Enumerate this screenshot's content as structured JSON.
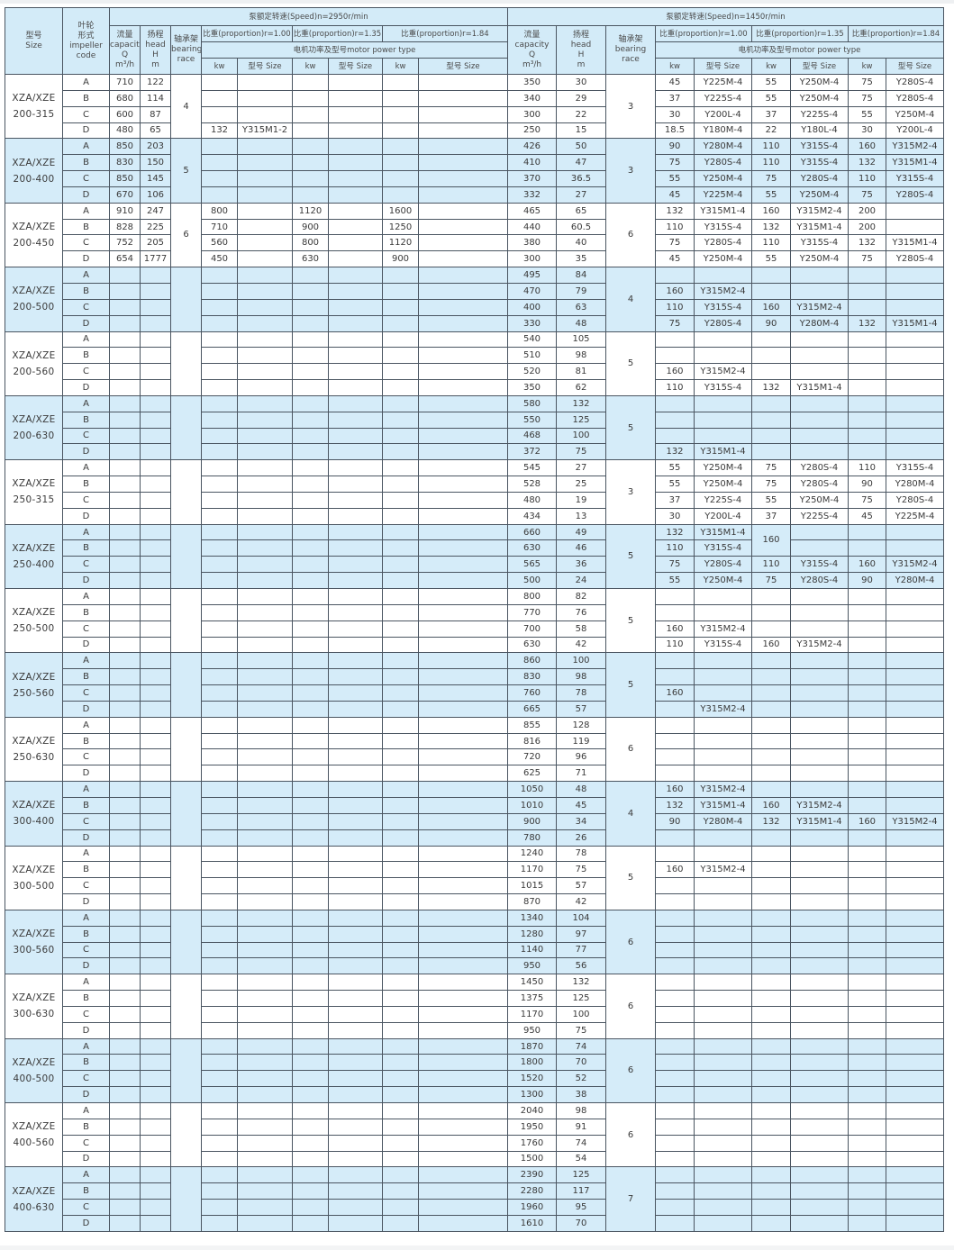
{
  "header": {
    "size": [
      "型号",
      "Size"
    ],
    "impeller": [
      "叶轮",
      "形式",
      "impeller",
      "code"
    ],
    "speed_2950": "泵额定转速(Speed)n=2950r/min",
    "speed_1450": "泵额定转速(Speed)n=1450r/min",
    "capacity": [
      "流量",
      "capacity",
      "Q",
      "m³/h"
    ],
    "head": [
      "扬程",
      "head",
      "H",
      "m"
    ],
    "bearing": [
      "轴承架",
      "bearing",
      "race"
    ],
    "proportions": [
      "比重(proportion)r=1.00",
      "比重(proportion)r=1.35",
      "比重(proportion)r=1.84"
    ],
    "motor_power_type": "电机功率及型号motor power type",
    "kw": "kw",
    "model_size": "型号 Size"
  },
  "colors": {
    "row_blue": "#d5ecf9",
    "header_blue": "#d3ebf8",
    "border": "#4a5561"
  },
  "groups": [
    {
      "model": "XZA/XZE",
      "size": "200-315",
      "bearing_2950": "4",
      "bearing_1450": "3",
      "rows": [
        {
          "code": "A",
          "q_2950": "710",
          "h_2950": "122",
          "motors_2950": [],
          "q_1450": "350",
          "h_1450": "30",
          "motors_1450": [
            "45",
            "Y225M-4",
            "55",
            "Y250M-4",
            "75",
            "Y280S-4"
          ]
        },
        {
          "code": "B",
          "q_2950": "680",
          "h_2950": "114",
          "motors_2950": [],
          "q_1450": "340",
          "h_1450": "29",
          "motors_1450": [
            "37",
            "Y225S-4",
            "55",
            "Y250M-4",
            "75",
            "Y280S-4"
          ]
        },
        {
          "code": "C",
          "q_2950": "600",
          "h_2950": "87",
          "motors_2950": [],
          "q_1450": "300",
          "h_1450": "22",
          "motors_1450": [
            "30",
            "Y200L-4",
            "37",
            "Y225S-4",
            "55",
            "Y250M-4"
          ]
        },
        {
          "code": "D",
          "q_2950": "480",
          "h_2950": "65",
          "motors_2950": [
            "132",
            "Y315M1-2"
          ],
          "q_1450": "250",
          "h_1450": "15",
          "motors_1450": [
            "18.5",
            "Y180M-4",
            "22",
            "Y180L-4",
            "30",
            "Y200L-4"
          ]
        }
      ]
    },
    {
      "model": "XZA/XZE",
      "size": "200-400",
      "bearing_2950": "5",
      "bearing_1450": "3",
      "rows": [
        {
          "code": "A",
          "q_2950": "850",
          "h_2950": "203",
          "motors_2950": [],
          "q_1450": "426",
          "h_1450": "50",
          "motors_1450": [
            "90",
            "Y280M-4",
            "110",
            "Y315S-4",
            "160",
            "Y315M2-4"
          ]
        },
        {
          "code": "B",
          "q_2950": "830",
          "h_2950": "150",
          "motors_2950": [],
          "q_1450": "410",
          "h_1450": "47",
          "motors_1450": [
            "75",
            "Y280S-4",
            "110",
            "Y315S-4",
            "132",
            "Y315M1-4"
          ]
        },
        {
          "code": "C",
          "q_2950": "850",
          "h_2950": "145",
          "motors_2950": [],
          "q_1450": "370",
          "h_1450": "36.5",
          "motors_1450": [
            "55",
            "Y250M-4",
            "75",
            "Y280S-4",
            "110",
            "Y315S-4"
          ]
        },
        {
          "code": "D",
          "q_2950": "670",
          "h_2950": "106",
          "motors_2950": [],
          "q_1450": "332",
          "h_1450": "27",
          "motors_1450": [
            "45",
            "Y225M-4",
            "55",
            "Y250M-4",
            "75",
            "Y280S-4"
          ]
        }
      ]
    },
    {
      "model": "XZA/XZE",
      "size": "200-450",
      "bearing_2950": "6",
      "bearing_1450": "6",
      "rows": [
        {
          "code": "A",
          "q_2950": "910",
          "h_2950": "247",
          "motors_2950": [
            "800",
            "",
            "1120",
            "",
            "1600",
            ""
          ],
          "q_1450": "465",
          "h_1450": "65",
          "motors_1450": [
            "132",
            "Y315M1-4",
            "160",
            "Y315M2-4",
            "200",
            ""
          ]
        },
        {
          "code": "B",
          "q_2950": "828",
          "h_2950": "225",
          "motors_2950": [
            "710",
            "",
            "900",
            "",
            "1250",
            ""
          ],
          "q_1450": "440",
          "h_1450": "60.5",
          "motors_1450": [
            "110",
            "Y315S-4",
            "132",
            "Y315M1-4",
            "200",
            ""
          ]
        },
        {
          "code": "C",
          "q_2950": "752",
          "h_2950": "205",
          "motors_2950": [
            "560",
            "",
            "800",
            "",
            "1120",
            ""
          ],
          "q_1450": "380",
          "h_1450": "40",
          "motors_1450": [
            "75",
            "Y280S-4",
            "110",
            "Y315S-4",
            "132",
            "Y315M1-4"
          ]
        },
        {
          "code": "D",
          "q_2950": "654",
          "h_2950": "1777",
          "motors_2950": [
            "450",
            "",
            "630",
            "",
            "900",
            ""
          ],
          "q_1450": "300",
          "h_1450": "35",
          "motors_1450": [
            "45",
            "Y250M-4",
            "55",
            "Y250M-4",
            "75",
            "Y280S-4"
          ]
        }
      ]
    },
    {
      "model": "XZA/XZE",
      "size": "200-500",
      "bearing_2950": "",
      "bearing_1450": "4",
      "rows": [
        {
          "code": "A",
          "q_1450": "495",
          "h_1450": "84",
          "motors_1450": []
        },
        {
          "code": "B",
          "q_1450": "470",
          "h_1450": "79",
          "motors_1450": [
            "160",
            "Y315M2-4"
          ]
        },
        {
          "code": "C",
          "q_1450": "400",
          "h_1450": "63",
          "motors_1450": [
            "110",
            "Y315S-4",
            "160",
            "Y315M2-4"
          ]
        },
        {
          "code": "D",
          "q_1450": "330",
          "h_1450": "48",
          "motors_1450": [
            "75",
            "Y280S-4",
            "90",
            "Y280M-4",
            "132",
            "Y315M1-4"
          ]
        }
      ]
    },
    {
      "model": "XZA/XZE",
      "size": "200-560",
      "bearing_2950": "",
      "bearing_1450": "5",
      "rows": [
        {
          "code": "A",
          "q_1450": "540",
          "h_1450": "105",
          "motors_1450": []
        },
        {
          "code": "B",
          "q_1450": "510",
          "h_1450": "98",
          "motors_1450": []
        },
        {
          "code": "C",
          "q_1450": "520",
          "h_1450": "81",
          "motors_1450": [
            "160",
            "Y315M2-4"
          ]
        },
        {
          "code": "D",
          "q_1450": "350",
          "h_1450": "62",
          "motors_1450": [
            "110",
            "Y315S-4",
            "132",
            "Y315M1-4"
          ]
        }
      ]
    },
    {
      "model": "XZA/XZE",
      "size": "200-630",
      "bearing_2950": "",
      "bearing_1450": "5",
      "rows": [
        {
          "code": "A",
          "q_1450": "580",
          "h_1450": "132",
          "motors_1450": []
        },
        {
          "code": "B",
          "q_1450": "550",
          "h_1450": "125",
          "motors_1450": []
        },
        {
          "code": "C",
          "q_1450": "468",
          "h_1450": "100",
          "motors_1450": []
        },
        {
          "code": "D",
          "q_1450": "372",
          "h_1450": "75",
          "motors_1450": [
            "132",
            "Y315M1-4"
          ]
        }
      ]
    },
    {
      "model": "XZA/XZE",
      "size": "250-315",
      "bearing_2950": "",
      "bearing_1450": "3",
      "rows": [
        {
          "code": "A",
          "q_1450": "545",
          "h_1450": "27",
          "motors_1450": [
            "55",
            "Y250M-4",
            "75",
            "Y280S-4",
            "110",
            "Y315S-4"
          ]
        },
        {
          "code": "B",
          "q_1450": "528",
          "h_1450": "25",
          "motors_1450": [
            "55",
            "Y250M-4",
            "75",
            "Y280S-4",
            "90",
            "Y280M-4"
          ]
        },
        {
          "code": "C",
          "q_1450": "480",
          "h_1450": "19",
          "motors_1450": [
            "37",
            "Y225S-4",
            "55",
            "Y250M-4",
            "75",
            "Y280S-4"
          ]
        },
        {
          "code": "D",
          "q_1450": "434",
          "h_1450": "13",
          "motors_1450": [
            "30",
            "Y200L-4",
            "37",
            "Y225S-4",
            "45",
            "Y225M-4"
          ]
        }
      ]
    },
    {
      "model": "XZA/XZE",
      "size": "250-400",
      "bearing_2950": "",
      "bearing_1450": "5",
      "rows": [
        {
          "code": "A",
          "q_1450": "660",
          "h_1450": "49",
          "motors_1450": [
            "132",
            "Y315M1-4",
            "160",
            "",
            "",
            ""
          ]
        },
        {
          "code": "B",
          "q_1450": "630",
          "h_1450": "46",
          "motors_1450": [
            "110",
            "Y315S-4",
            null,
            "",
            "",
            ""
          ]
        },
        {
          "code": "C",
          "q_1450": "565",
          "h_1450": "36",
          "motors_1450": [
            "75",
            "Y280S-4",
            "110",
            "Y315S-4",
            "160",
            "Y315M2-4"
          ]
        },
        {
          "code": "D",
          "q_1450": "500",
          "h_1450": "24",
          "motors_1450": [
            "55",
            "Y250M-4",
            "75",
            "Y280S-4",
            "90",
            "Y280M-4"
          ]
        }
      ]
    },
    {
      "model": "XZA/XZE",
      "size": "250-500",
      "bearing_2950": "",
      "bearing_1450": "5",
      "rows": [
        {
          "code": "A",
          "q_1450": "800",
          "h_1450": "82",
          "motors_1450": []
        },
        {
          "code": "B",
          "q_1450": "770",
          "h_1450": "76",
          "motors_1450": []
        },
        {
          "code": "C",
          "q_1450": "700",
          "h_1450": "58",
          "motors_1450": [
            "160",
            "Y315M2-4"
          ]
        },
        {
          "code": "D",
          "q_1450": "630",
          "h_1450": "42",
          "motors_1450": [
            "110",
            "Y315S-4",
            "160",
            "Y315M2-4"
          ]
        }
      ]
    },
    {
      "model": "XZA/XZE",
      "size": "250-560",
      "bearing_2950": "",
      "bearing_1450": "5",
      "rows": [
        {
          "code": "A",
          "q_1450": "860",
          "h_1450": "100",
          "motors_1450": []
        },
        {
          "code": "B",
          "q_1450": "830",
          "h_1450": "98",
          "motors_1450": []
        },
        {
          "code": "C",
          "q_1450": "760",
          "h_1450": "78",
          "motors_1450": [
            "160",
            ""
          ]
        },
        {
          "code": "D",
          "q_1450": "665",
          "h_1450": "57",
          "motors_1450": [
            "",
            "Y315M2-4"
          ]
        }
      ]
    },
    {
      "model": "XZA/XZE",
      "size": "250-630",
      "bearing_2950": "",
      "bearing_1450": "6",
      "rows": [
        {
          "code": "A",
          "q_1450": "855",
          "h_1450": "128",
          "motors_1450": []
        },
        {
          "code": "B",
          "q_1450": "816",
          "h_1450": "119",
          "motors_1450": []
        },
        {
          "code": "C",
          "q_1450": "720",
          "h_1450": "96",
          "motors_1450": []
        },
        {
          "code": "D",
          "q_1450": "625",
          "h_1450": "71",
          "motors_1450": []
        }
      ]
    },
    {
      "model": "XZA/XZE",
      "size": "300-400",
      "bearing_2950": "",
      "bearing_1450": "4",
      "rows": [
        {
          "code": "A",
          "q_1450": "1050",
          "h_1450": "48",
          "motors_1450": [
            "160",
            "Y315M2-4"
          ]
        },
        {
          "code": "B",
          "q_1450": "1010",
          "h_1450": "45",
          "motors_1450": [
            "132",
            "Y315M1-4",
            "160",
            "Y315M2-4"
          ]
        },
        {
          "code": "C",
          "q_1450": "900",
          "h_1450": "34",
          "motors_1450": [
            "90",
            "Y280M-4",
            "132",
            "Y315M1-4",
            "160",
            "Y315M2-4"
          ]
        },
        {
          "code": "D",
          "q_1450": "780",
          "h_1450": "26",
          "motors_1450": []
        }
      ]
    },
    {
      "model": "XZA/XZE",
      "size": "300-500",
      "bearing_2950": "",
      "bearing_1450": "5",
      "rows": [
        {
          "code": "A",
          "q_1450": "1240",
          "h_1450": "78",
          "motors_1450": []
        },
        {
          "code": "B",
          "q_1450": "1170",
          "h_1450": "75",
          "motors_1450": [
            "160",
            "Y315M2-4"
          ]
        },
        {
          "code": "C",
          "q_1450": "1015",
          "h_1450": "57",
          "motors_1450": []
        },
        {
          "code": "D",
          "q_1450": "870",
          "h_1450": "42",
          "motors_1450": []
        }
      ]
    },
    {
      "model": "XZA/XZE",
      "size": "300-560",
      "bearing_2950": "",
      "bearing_1450": "6",
      "rows": [
        {
          "code": "A",
          "q_1450": "1340",
          "h_1450": "104",
          "motors_1450": []
        },
        {
          "code": "B",
          "q_1450": "1280",
          "h_1450": "97",
          "motors_1450": []
        },
        {
          "code": "C",
          "q_1450": "1140",
          "h_1450": "77",
          "motors_1450": []
        },
        {
          "code": "D",
          "q_1450": "950",
          "h_1450": "56",
          "motors_1450": []
        }
      ]
    },
    {
      "model": "XZA/XZE",
      "size": "300-630",
      "bearing_2950": "",
      "bearing_1450": "6",
      "rows": [
        {
          "code": "A",
          "q_1450": "1450",
          "h_1450": "132",
          "motors_1450": []
        },
        {
          "code": "B",
          "q_1450": "1375",
          "h_1450": "125",
          "motors_1450": []
        },
        {
          "code": "C",
          "q_1450": "1170",
          "h_1450": "100",
          "motors_1450": []
        },
        {
          "code": "D",
          "q_1450": "950",
          "h_1450": "75",
          "motors_1450": []
        }
      ]
    },
    {
      "model": "XZA/XZE",
      "size": "400-500",
      "bearing_2950": "",
      "bearing_1450": "6",
      "rows": [
        {
          "code": "A",
          "q_1450": "1870",
          "h_1450": "74",
          "motors_1450": []
        },
        {
          "code": "B",
          "q_1450": "1800",
          "h_1450": "70",
          "motors_1450": []
        },
        {
          "code": "C",
          "q_1450": "1520",
          "h_1450": "52",
          "motors_1450": []
        },
        {
          "code": "D",
          "q_1450": "1300",
          "h_1450": "38",
          "motors_1450": []
        }
      ]
    },
    {
      "model": "XZA/XZE",
      "size": "400-560",
      "bearing_2950": "",
      "bearing_1450": "6",
      "rows": [
        {
          "code": "A",
          "q_1450": "2040",
          "h_1450": "98",
          "motors_1450": []
        },
        {
          "code": "B",
          "q_1450": "1950",
          "h_1450": "91",
          "motors_1450": []
        },
        {
          "code": "C",
          "q_1450": "1760",
          "h_1450": "74",
          "motors_1450": []
        },
        {
          "code": "D",
          "q_1450": "1500",
          "h_1450": "54",
          "motors_1450": []
        }
      ]
    },
    {
      "model": "XZA/XZE",
      "size": "400-630",
      "bearing_2950": "",
      "bearing_1450": "7",
      "rows": [
        {
          "code": "A",
          "q_1450": "2390",
          "h_1450": "125",
          "motors_1450": []
        },
        {
          "code": "B",
          "q_1450": "2280",
          "h_1450": "117",
          "motors_1450": []
        },
        {
          "code": "C",
          "q_1450": "1960",
          "h_1450": "95",
          "motors_1450": []
        },
        {
          "code": "D",
          "q_1450": "1610",
          "h_1450": "70",
          "motors_1450": []
        }
      ]
    }
  ]
}
